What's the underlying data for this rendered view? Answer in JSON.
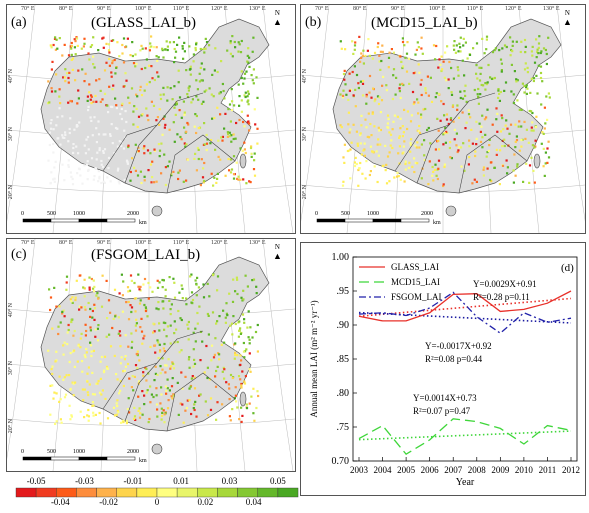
{
  "panels": [
    {
      "tag": "(a)",
      "title": "(GLASS_LAI_b)"
    },
    {
      "tag": "(b)",
      "title": "(MCD15_LAI_b)"
    },
    {
      "tag": "(c)",
      "title": "(FSGOM_LAI_b)"
    }
  ],
  "map_axes": {
    "lon_labels": [
      "70° E",
      "80° E",
      "90° E",
      "100° E",
      "110° E",
      "120° E",
      "130° E"
    ],
    "lat_labels": [
      "40° N",
      "30° N",
      "20° N"
    ],
    "scale_labels": [
      "0",
      "500",
      "1000",
      "2000"
    ],
    "scale_unit": "km",
    "north": "N"
  },
  "colorbar": {
    "top_labels": [
      "-0.05",
      "-0.03",
      "-0.01",
      "0.01",
      "0.03",
      "0.05"
    ],
    "bottom_labels": [
      "-0.04",
      "-0.02",
      "0",
      "0.02",
      "0.04"
    ],
    "colors": [
      "#e31a1c",
      "#f03b20",
      "#fd5b18",
      "#fd8d3c",
      "#feb24c",
      "#fed44c",
      "#ffee55",
      "#ffff80",
      "#e8f56a",
      "#c9e84a",
      "#a7d83a",
      "#84c832",
      "#64b82a",
      "#4aa823"
    ]
  },
  "chart_data": {
    "type": "line",
    "tag": "(d)",
    "x": [
      2003,
      2004,
      2005,
      2006,
      2007,
      2008,
      2009,
      2010,
      2011,
      2012
    ],
    "xlabel": "Year",
    "ylabel": "Annual mean LAI (m² m⁻² yr⁻¹)",
    "ylim": [
      0.7,
      1.0
    ],
    "yticks": [
      "0.70",
      ".75",
      ".80",
      ".85",
      ".90",
      ".95",
      "1.00"
    ],
    "series": [
      {
        "name": "GLASS_LAI",
        "color": "#e8302a",
        "dash": "",
        "values": [
          0.913,
          0.906,
          0.906,
          0.918,
          0.945,
          0.946,
          0.92,
          0.923,
          0.932,
          0.95
        ]
      },
      {
        "name": "MCD15_LAI",
        "color": "#3fd63a",
        "dash": "10,5",
        "values": [
          0.733,
          0.752,
          0.71,
          0.731,
          0.762,
          0.758,
          0.748,
          0.725,
          0.752,
          0.745
        ]
      },
      {
        "name": "FSGOM_LAI",
        "color": "#2222aa",
        "dash": "7,3,2,3",
        "values": [
          0.916,
          0.918,
          0.914,
          0.925,
          0.948,
          0.912,
          0.888,
          0.918,
          0.904,
          0.91
        ]
      }
    ],
    "trends": [
      {
        "color": "#e8302a",
        "start": 0.9129,
        "end": 0.939
      },
      {
        "color": "#1a1aa0",
        "start": 0.9183,
        "end": 0.903
      },
      {
        "color": "#3fd63a",
        "start": 0.7314,
        "end": 0.744
      }
    ],
    "annotations": [
      {
        "eq": "Y=0.0029X+0.91",
        "r2": "R²=0.28 p=0.11"
      },
      {
        "eq": "Y=-0.0017X+0.92",
        "r2": "R²=0.08 p=0.44"
      },
      {
        "eq": "Y=0.0014X+0.73",
        "r2": "R²=0.07 p=0.47"
      }
    ]
  }
}
